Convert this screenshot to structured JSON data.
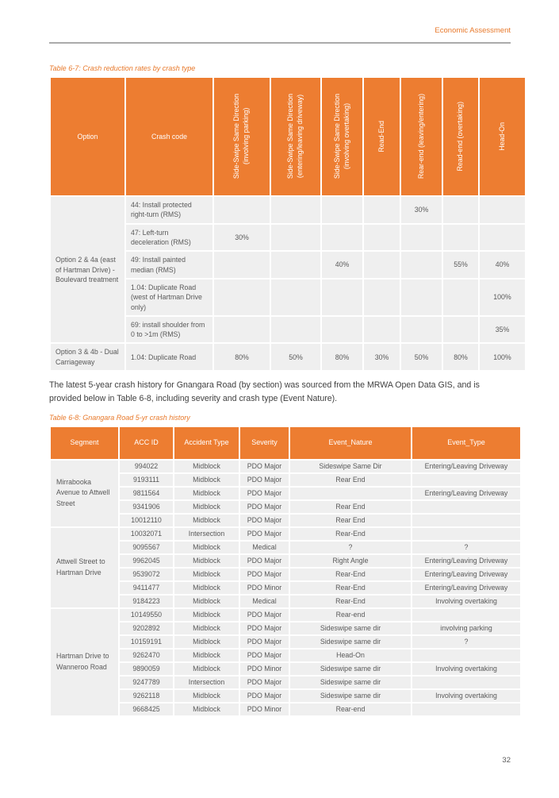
{
  "colors": {
    "accent_orange": "#ED7D31",
    "caption_orange": "#E8792B",
    "cell_gray": "#EFEFEF",
    "cell_text": "#595959",
    "rule_gray": "#ABABAB"
  },
  "header": {
    "right_text": "Economic Assessment"
  },
  "footer": {
    "page_number": "32"
  },
  "paragraph": "The latest 5-year crash history for Gnangara Road (by section) was sourced from the MRWA Open Data GIS, and is\nprovided below in Table 6-8, including severity and crash type (Event Nature).",
  "table67": {
    "caption": "Table 6-7: Crash reduction rates by crash type",
    "header_option": "Option",
    "header_crash_code": "Crash code",
    "rotated_headers": [
      "Side-Swipe Same Direction\n(involving parking)",
      "Side-Swipe Same Direction\n(entering/leaving driveway)",
      "Side-Swipe Same Direction\n(involving overtaking)",
      "Read-End",
      "Rear-end (leaving/entering)",
      "Read-end (overtaking)",
      "Head-On"
    ],
    "groups": [
      {
        "option": "Option 2 & 4a (east of Hartman Drive) - Boulevard treatment",
        "rows": [
          {
            "code": "44: Install protected right-turn (RMS)",
            "values": [
              "",
              "",
              "",
              "",
              "30%",
              "",
              ""
            ]
          },
          {
            "code": "47: Left-turn deceleration (RMS)",
            "values": [
              "30%",
              "",
              "",
              "",
              "",
              "",
              ""
            ]
          },
          {
            "code": "49: Install painted median (RMS)",
            "values": [
              "",
              "",
              "40%",
              "",
              "",
              "55%",
              "40%"
            ]
          },
          {
            "code": "1.04: Duplicate Road (west of Hartman Drive only)",
            "values": [
              "",
              "",
              "",
              "",
              "",
              "",
              "100%"
            ]
          },
          {
            "code": "69: install shoulder from 0 to >1m (RMS)",
            "values": [
              "",
              "",
              "",
              "",
              "",
              "",
              "35%"
            ]
          }
        ]
      },
      {
        "option": "Option 3 & 4b - Dual Carriageway",
        "rows": [
          {
            "code": "1.04: Duplicate Road",
            "values": [
              "80%",
              "50%",
              "80%",
              "30%",
              "50%",
              "80%",
              "100%"
            ]
          }
        ]
      }
    ]
  },
  "table68": {
    "caption": "Table 6-8: Gnangara Road 5-yr crash history",
    "headers": [
      "Segment",
      "ACC ID",
      "Accident Type",
      "Severity",
      "Event_Nature",
      "Event_Type"
    ],
    "groups": [
      {
        "segment": "Mirrabooka Avenue to Attwell Street",
        "rows": [
          [
            "994022",
            "Midblock",
            "PDO Major",
            "Sideswipe Same Dir",
            "Entering/Leaving Driveway"
          ],
          [
            "9193111",
            "Midblock",
            "PDO Major",
            "Rear End",
            ""
          ],
          [
            "9811564",
            "Midblock",
            "PDO Major",
            "",
            "Entering/Leaving Driveway"
          ],
          [
            "9341906",
            "Midblock",
            "PDO Major",
            "Rear End",
            ""
          ],
          [
            "10012110",
            "Midblock",
            "PDO Major",
            "Rear End",
            ""
          ]
        ]
      },
      {
        "segment": "Attwell Street to Hartman Drive",
        "rows": [
          [
            "10032071",
            "Intersection",
            "PDO Major",
            "Rear-End",
            ""
          ],
          [
            "9095567",
            "Midblock",
            "Medical",
            "?",
            "?"
          ],
          [
            "9962045",
            "Midblock",
            "PDO Major",
            "Right Angle",
            "Entering/Leaving Driveway"
          ],
          [
            "9539072",
            "Midblock",
            "PDO Major",
            "Rear-End",
            "Entering/Leaving Driveway"
          ],
          [
            "9411477",
            "Midblock",
            "PDO Minor",
            "Rear-End",
            "Entering/Leaving Driveway"
          ],
          [
            "9184223",
            "Midblock",
            "Medical",
            "Rear-End",
            "Involving overtaking"
          ]
        ]
      },
      {
        "segment": "Hartman Drive to Wanneroo Road",
        "rows": [
          [
            "10149550",
            "Midblock",
            "PDO Major",
            "Rear-end",
            ""
          ],
          [
            "9202892",
            "Midblock",
            "PDO Major",
            "Sideswipe same dir",
            "involving parking"
          ],
          [
            "10159191",
            "Midblock",
            "PDO Major",
            "Sideswipe same dir",
            "?"
          ],
          [
            "9262470",
            "Midblock",
            "PDO Major",
            "Head-On",
            ""
          ],
          [
            "9890059",
            "Midblock",
            "PDO Minor",
            "Sideswipe same dir",
            "Involving overtaking"
          ],
          [
            "9247789",
            "Intersection",
            "PDO Major",
            "Sideswipe same dir",
            ""
          ],
          [
            "9262118",
            "Midblock",
            "PDO Major",
            "Sideswipe same dir",
            "Involving overtaking"
          ],
          [
            "9668425",
            "Midblock",
            "PDO Minor",
            "Rear-end",
            ""
          ]
        ]
      }
    ]
  }
}
